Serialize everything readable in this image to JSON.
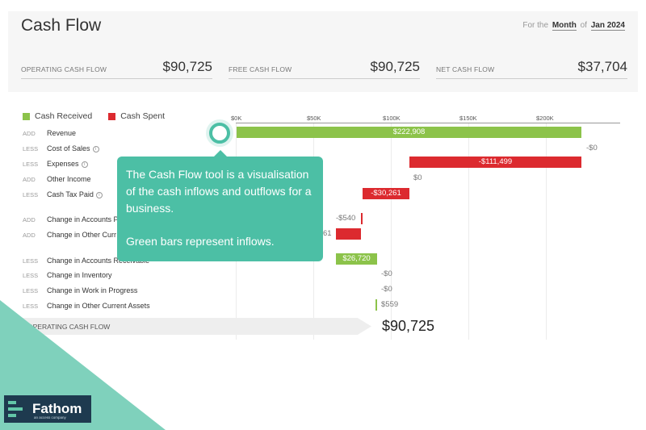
{
  "header": {
    "title": "Cash Flow",
    "period_prefix": "For the",
    "period_unit": "Month",
    "period_of": "of",
    "period_value": "Jan 2024"
  },
  "kpis": [
    {
      "label": "OPERATING CASH FLOW",
      "value": "$90,725"
    },
    {
      "label": "FREE CASH FLOW",
      "value": "$90,725"
    },
    {
      "label": "NET CASH FLOW",
      "value": "$37,704"
    }
  ],
  "legend": [
    {
      "label": "Cash Received",
      "color": "#8cc34a"
    },
    {
      "label": "Cash Spent",
      "color": "#dc2a2f"
    }
  ],
  "axis_ticks": [
    "$0K",
    "$50K",
    "$100K",
    "$150K",
    "$200K"
  ],
  "rows": [
    {
      "tag": "ADD",
      "label": "Revenue",
      "info": false,
      "value": "$222,908"
    },
    {
      "tag": "LESS",
      "label": "Cost of Sales",
      "info": true,
      "value": "-$0"
    },
    {
      "tag": "LESS",
      "label": "Expenses",
      "info": true,
      "value": "-$111,499"
    },
    {
      "tag": "ADD",
      "label": "Other Income",
      "info": false,
      "value": "$0"
    },
    {
      "tag": "LESS",
      "label": "Cash Tax Paid",
      "info": true,
      "value": "-$30,261"
    },
    {
      "tag": "ADD",
      "label": "Change in Accounts P",
      "info": false,
      "value": "-$540"
    },
    {
      "tag": "ADD",
      "label": "Change in Other Curr",
      "info": false,
      "value": "61"
    },
    {
      "tag": "LESS",
      "label": "Change in Accounts Receivable",
      "info": false,
      "value": "$26,720"
    },
    {
      "tag": "LESS",
      "label": "Change in Inventory",
      "info": false,
      "value": "-$0"
    },
    {
      "tag": "LESS",
      "label": "Change in Work in Progress",
      "info": false,
      "value": "-$0"
    },
    {
      "tag": "LESS",
      "label": "Change in Other Current Assets",
      "info": false,
      "value": "$559"
    }
  ],
  "total": {
    "label": "OPERATING CASH FLOW",
    "value": "$90,725"
  },
  "tooltip": {
    "line1": "The Cash Flow tool is a visualisation of the cash inflows and outflows for a business.",
    "line2": "Green bars represent inflows."
  },
  "brand": {
    "name": "Fathom",
    "tagline": "an access company"
  },
  "info_glyph": "i"
}
